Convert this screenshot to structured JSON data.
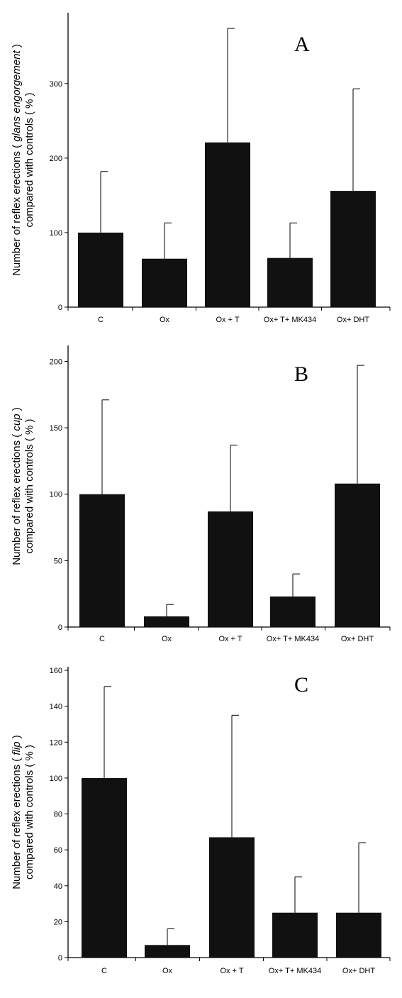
{
  "chart_data": [
    {
      "type": "bar",
      "panel_label": "A",
      "ylabel": [
        "Number of reflex erections ( glans engorgement )",
        "compared with controls ( % )"
      ],
      "ylabel_italic": "glans engorgement",
      "categories": [
        "C",
        "Ox",
        "Ox + T",
        "Ox+ T+ MK434",
        "Ox+ DHT"
      ],
      "values": [
        100,
        65,
        221,
        66,
        156
      ],
      "errors": [
        82,
        48,
        153,
        47,
        137
      ],
      "ylim": [
        0,
        395
      ],
      "yticks": [
        0,
        100,
        200,
        300
      ],
      "grid": false
    },
    {
      "type": "bar",
      "panel_label": "B",
      "ylabel": [
        "Number of reflex erections ( cup )",
        "compared with controls ( % )"
      ],
      "ylabel_italic": "cup",
      "categories": [
        "C",
        "Ox",
        "Ox + T",
        "Ox+ T+ MK434",
        "Ox+ DHT"
      ],
      "values": [
        100,
        8,
        87,
        23,
        108
      ],
      "errors": [
        71,
        9,
        50,
        17,
        89
      ],
      "ylim": [
        0,
        212
      ],
      "yticks": [
        0,
        50,
        100,
        150,
        200
      ],
      "grid": false
    },
    {
      "type": "bar",
      "panel_label": "C",
      "ylabel": [
        "Number of reflex erections ( flip )",
        "compared with controls ( % )"
      ],
      "ylabel_italic": "flip",
      "categories": [
        "C",
        "Ox",
        "Ox + T",
        "Ox+ T+ MK434",
        "Ox+ DHT"
      ],
      "values": [
        100,
        7,
        67,
        25,
        25
      ],
      "errors": [
        51,
        9,
        68,
        20,
        39
      ],
      "ylim": [
        0,
        162
      ],
      "yticks": [
        0,
        20,
        40,
        60,
        80,
        100,
        120,
        140,
        160
      ],
      "grid": false
    }
  ]
}
